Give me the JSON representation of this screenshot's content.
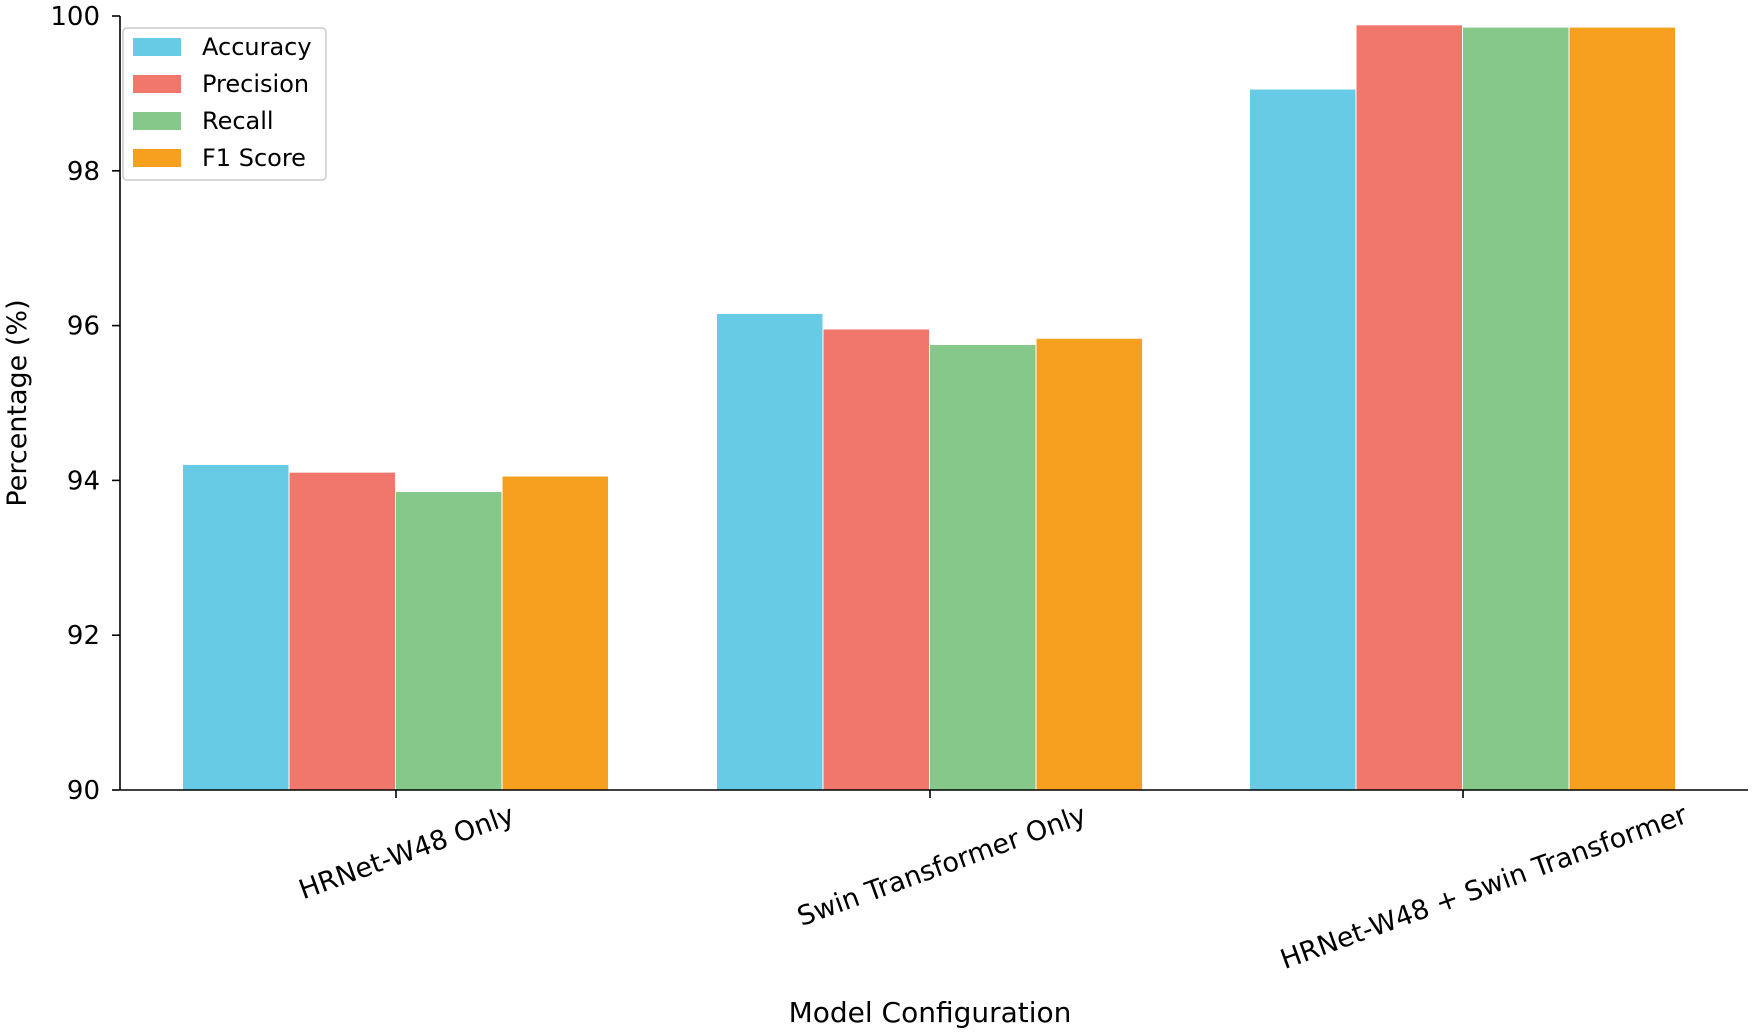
{
  "chart_data": {
    "type": "bar",
    "title": "",
    "xlabel": "Model Configuration",
    "ylabel": "Percentage (%)",
    "ylim": [
      90,
      100
    ],
    "yticks": [
      90,
      92,
      94,
      96,
      98,
      100
    ],
    "grid": false,
    "legend_position": "top-left",
    "categories": [
      "HRNet-W48 Only",
      "Swin Transformer Only",
      "HRNet-W48 + Swin Transformer"
    ],
    "series": [
      {
        "name": "Accuracy",
        "color": "#68cbe6",
        "values": [
          94.2,
          96.15,
          99.05
        ]
      },
      {
        "name": "Precision",
        "color": "#f1776c",
        "values": [
          94.1,
          95.95,
          99.88
        ]
      },
      {
        "name": "Recall",
        "color": "#85c88a",
        "values": [
          93.85,
          95.75,
          99.85
        ]
      },
      {
        "name": "F1 Score",
        "color": "#f7a020",
        "values": [
          94.05,
          95.83,
          99.85
        ]
      }
    ]
  }
}
